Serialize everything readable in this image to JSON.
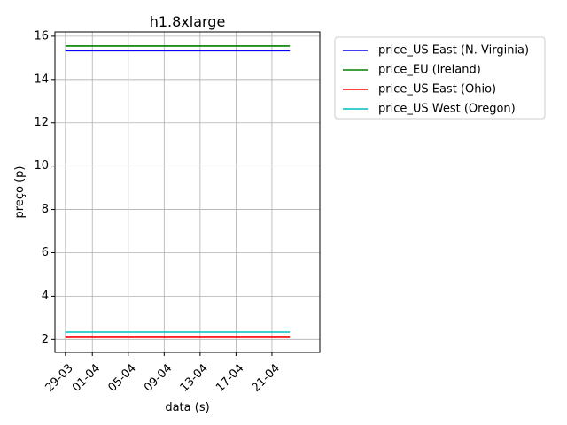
{
  "chart_data": {
    "type": "line",
    "title": "h1.8xlarge",
    "xlabel": "data (s)",
    "ylabel": "preço (p)",
    "x_tick_labels": [
      "29-03",
      "01-04",
      "05-04",
      "09-04",
      "13-04",
      "17-04",
      "21-04"
    ],
    "x_tick_dates": [
      "2023-03-29",
      "2023-04-01",
      "2023-04-05",
      "2023-04-09",
      "2023-04-13",
      "2023-04-17",
      "2023-04-21"
    ],
    "xlim": [
      "2023-03-27T20:00",
      "2023-04-26T08:00"
    ],
    "y_ticks": [
      2,
      4,
      6,
      8,
      10,
      12,
      14,
      16
    ],
    "ylim": [
      1.4,
      16.2
    ],
    "grid": true,
    "legend_position": "outside-top-right",
    "series": [
      {
        "name": "price_US East (N. Virginia)",
        "color": "#0000ff",
        "x": [
          "2023-03-29",
          "2023-04-23"
        ],
        "y": [
          15.33,
          15.33
        ]
      },
      {
        "name": "price_EU (Ireland)",
        "color": "#008000",
        "x": [
          "2023-03-29",
          "2023-04-23"
        ],
        "y": [
          15.55,
          15.55
        ]
      },
      {
        "name": "price_US East (Ohio)",
        "color": "#ff0000",
        "x": [
          "2023-03-29",
          "2023-04-23"
        ],
        "y": [
          2.1,
          2.1
        ]
      },
      {
        "name": "price_US West (Oregon)",
        "color": "#00bfbf",
        "x": [
          "2023-03-29",
          "2023-04-23"
        ],
        "y": [
          2.34,
          2.34
        ]
      }
    ]
  }
}
